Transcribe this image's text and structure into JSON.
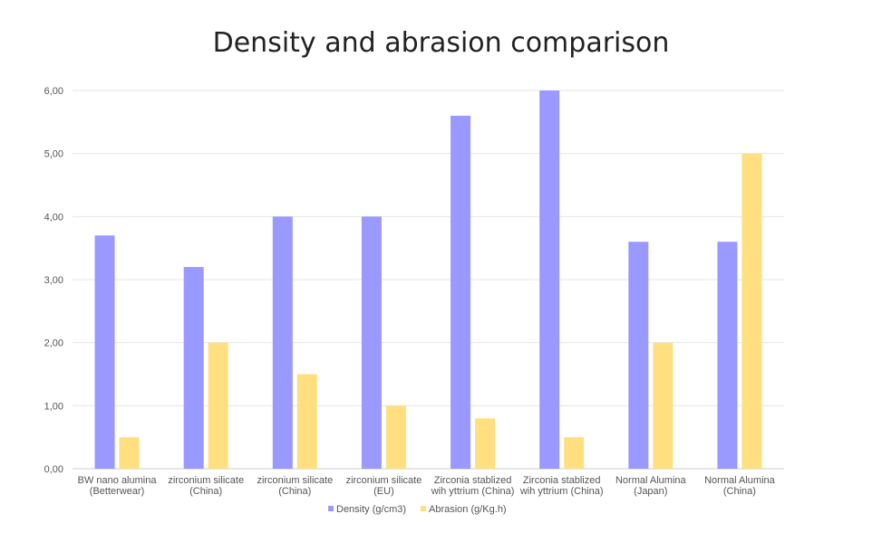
{
  "chart_data": {
    "type": "bar",
    "title": "Density and abrasion comparison",
    "categories": [
      [
        "BW nano alumina",
        "(Betterwear)"
      ],
      [
        "zirconium silicate",
        "(China)"
      ],
      [
        "zirconium silicate",
        "(China)"
      ],
      [
        "zirconium silicate",
        "(EU)"
      ],
      [
        "Zirconia stablized",
        "wih yttrium (China)"
      ],
      [
        "Zirconia stablized",
        "wih yttrium (China)"
      ],
      [
        "Normal Alumina",
        "(Japan)"
      ],
      [
        "Normal Alumina",
        "(China)"
      ]
    ],
    "series": [
      {
        "name": "Density (g/cm3)",
        "color": "#9999ff",
        "values": [
          3.7,
          3.2,
          4.0,
          4.0,
          5.6,
          6.0,
          3.6,
          3.6
        ]
      },
      {
        "name": "Abrasion (g/Kg.h)",
        "color": "#ffdf7f",
        "values": [
          0.5,
          2.0,
          1.5,
          1.0,
          0.8,
          0.5,
          2.0,
          5.0
        ]
      }
    ],
    "ylim": [
      0,
      6
    ],
    "yticks": [
      "0,00",
      "1,00",
      "2,00",
      "3,00",
      "4,00",
      "5,00",
      "6,00"
    ],
    "xlabel": "",
    "ylabel": "",
    "grid": true,
    "legend": "bottom"
  }
}
